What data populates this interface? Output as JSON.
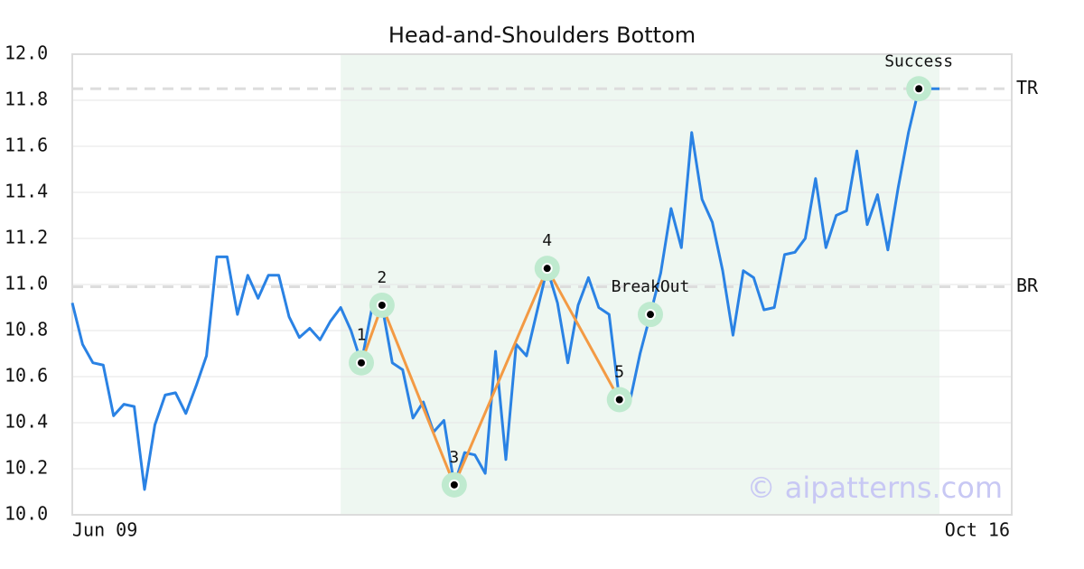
{
  "chart_data": {
    "type": "line",
    "title": "Head-and-Shoulders Bottom",
    "categories": [
      "Jun 09",
      null,
      null,
      null,
      null,
      null,
      null,
      null,
      null,
      null,
      null,
      null,
      null,
      null,
      null,
      null,
      null,
      null,
      null,
      null,
      null,
      null,
      null,
      null,
      null,
      null,
      null,
      null,
      null,
      null,
      null,
      null,
      null,
      null,
      null,
      null,
      null,
      null,
      null,
      null,
      null,
      null,
      null,
      null,
      null,
      null,
      null,
      null,
      null,
      null,
      null,
      null,
      null,
      null,
      null,
      null,
      null,
      null,
      null,
      null,
      null,
      null,
      null,
      null,
      null,
      null,
      null,
      null,
      null,
      null,
      null,
      null,
      null,
      null,
      null,
      null,
      null,
      null,
      null,
      null,
      null,
      null,
      null,
      null,
      null,
      null,
      null,
      null,
      null,
      null,
      null,
      "Oct 16"
    ],
    "series": [
      {
        "color": "#2a82e4",
        "values": [
          10.92,
          10.74,
          10.66,
          10.65,
          10.43,
          10.48,
          10.47,
          10.11,
          10.39,
          10.52,
          10.53,
          10.44,
          10.56,
          10.69,
          11.12,
          11.12,
          10.87,
          11.04,
          10.94,
          11.04,
          11.04,
          10.86,
          10.77,
          10.81,
          10.76,
          10.84,
          10.9,
          10.8,
          10.66,
          10.89,
          10.91,
          10.66,
          10.63,
          10.42,
          10.49,
          10.36,
          10.41,
          10.13,
          10.27,
          10.26,
          10.18,
          10.71,
          10.24,
          10.74,
          10.69,
          10.88,
          11.07,
          10.92,
          10.66,
          10.91,
          11.03,
          10.9,
          10.87,
          10.5,
          10.49,
          10.7,
          10.87,
          11.05,
          11.33,
          11.16,
          11.66,
          11.37,
          11.27,
          11.06,
          10.78,
          11.06,
          11.03,
          10.89,
          10.9,
          11.13,
          11.14,
          11.2,
          11.46,
          11.16,
          11.3,
          11.32,
          11.58,
          11.26,
          11.39,
          11.15,
          11.42,
          11.66,
          11.85,
          11.85,
          11.85,
          null,
          null,
          null,
          null,
          null,
          null,
          null
        ]
      }
    ],
    "ylim": [
      10.0,
      12.0
    ],
    "yticks": [
      {
        "value": 10.0,
        "label": "10.0"
      },
      {
        "value": 10.2,
        "label": "10.2"
      },
      {
        "value": 10.4,
        "label": "10.4"
      },
      {
        "value": 10.6,
        "label": "10.6"
      },
      {
        "value": 10.8,
        "label": "10.8"
      },
      {
        "value": 11.0,
        "label": "11.0"
      },
      {
        "value": 11.2,
        "label": "11.2"
      },
      {
        "value": 11.4,
        "label": "11.4"
      },
      {
        "value": 11.6,
        "label": "11.6"
      },
      {
        "value": 11.8,
        "label": "11.8"
      },
      {
        "value": 12.0,
        "label": "12.0"
      }
    ],
    "grid": true,
    "highlight": {
      "start": 26,
      "end": 84,
      "color": "#eef7f1"
    },
    "pattern": {
      "color": "#f39a44",
      "points": [
        {
          "label": "1",
          "index": 28,
          "value": 10.66
        },
        {
          "label": "2",
          "index": 30,
          "value": 10.91
        },
        {
          "label": "3",
          "index": 37,
          "value": 10.13
        },
        {
          "label": "4",
          "index": 46,
          "value": 11.07
        },
        {
          "label": "5",
          "index": 53,
          "value": 10.5
        }
      ]
    },
    "events": [
      {
        "label": "BreakOut",
        "index": 56,
        "value": 10.87
      },
      {
        "label": "Success",
        "index": 82,
        "value": 11.85
      }
    ],
    "levels": [
      {
        "label": "TR",
        "value": 11.85
      },
      {
        "label": "BR",
        "value": 10.99
      }
    ],
    "watermark": "© aipatterns.com"
  }
}
